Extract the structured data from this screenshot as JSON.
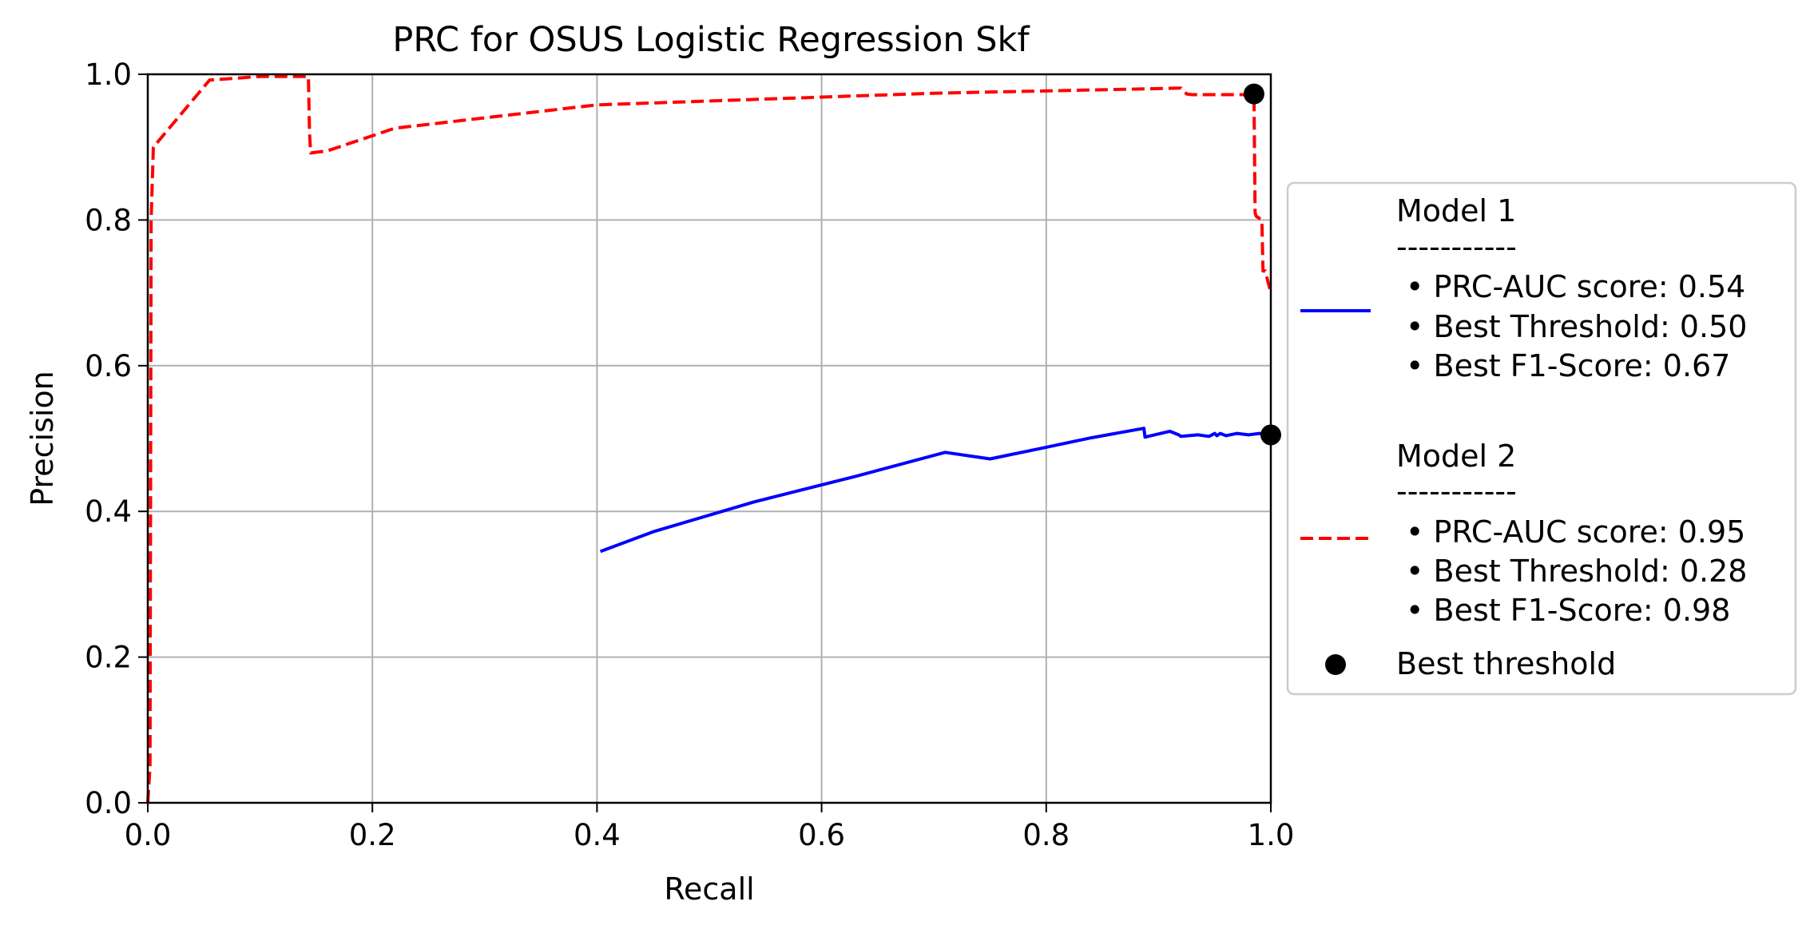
{
  "chart_data": {
    "type": "line",
    "title": "PRC for OSUS Logistic Regression Skf",
    "xlabel": "Recall",
    "ylabel": "Precision",
    "xlim": [
      0.0,
      1.0
    ],
    "ylim": [
      0.0,
      1.0
    ],
    "xticks": [
      "0.0",
      "0.2",
      "0.4",
      "0.6",
      "0.8",
      "1.0"
    ],
    "yticks": [
      "0.0",
      "0.2",
      "0.4",
      "0.6",
      "0.8",
      "1.0"
    ],
    "grid": true,
    "legend_position": "center-right-outside",
    "series": [
      {
        "name": "Model 1",
        "color": "#0000ff",
        "dash": "solid",
        "x": [
          0.403,
          0.45,
          0.54,
          0.63,
          0.71,
          0.75,
          0.8,
          0.84,
          0.887,
          0.888,
          0.91,
          0.918,
          0.92,
          0.935,
          0.945,
          0.95,
          0.952,
          0.955,
          0.96,
          0.97,
          0.98,
          0.99,
          1.0
        ],
        "y": [
          0.345,
          0.372,
          0.413,
          0.448,
          0.481,
          0.472,
          0.488,
          0.501,
          0.514,
          0.502,
          0.51,
          0.505,
          0.503,
          0.505,
          0.503,
          0.507,
          0.504,
          0.507,
          0.504,
          0.507,
          0.505,
          0.507,
          0.505
        ]
      },
      {
        "name": "Model 2",
        "color": "#ff0000",
        "dash": "dashed",
        "x": [
          0.0,
          0.002,
          0.003,
          0.004,
          0.005,
          0.055,
          0.1,
          0.143,
          0.144,
          0.145,
          0.16,
          0.22,
          0.4,
          0.7,
          0.92,
          0.925,
          0.93,
          0.985,
          0.986,
          0.987,
          0.992,
          0.993,
          0.995,
          1.0
        ],
        "y": [
          0.0,
          0.05,
          0.8,
          0.85,
          0.9,
          0.992,
          0.997,
          0.997,
          0.92,
          0.892,
          0.895,
          0.926,
          0.958,
          0.974,
          0.981,
          0.973,
          0.972,
          0.972,
          0.81,
          0.805,
          0.8,
          0.73,
          0.73,
          0.7
        ]
      }
    ],
    "best_threshold_points": {
      "name": "Best threshold",
      "color": "#000000",
      "x": [
        0.985,
        1.0
      ],
      "y": [
        0.973,
        0.505
      ]
    },
    "legend": {
      "model1": {
        "title": "Model 1",
        "separator": "-----------",
        "lines": [
          "• PRC-AUC score: 0.54",
          "• Best Threshold: 0.50",
          "• Best F1-Score: 0.67"
        ]
      },
      "model2": {
        "title": "Model 2",
        "separator": "-----------",
        "lines": [
          "• PRC-AUC score: 0.95",
          "• Best Threshold: 0.28",
          "• Best F1-Score: 0.98"
        ]
      },
      "best": "Best threshold"
    }
  }
}
